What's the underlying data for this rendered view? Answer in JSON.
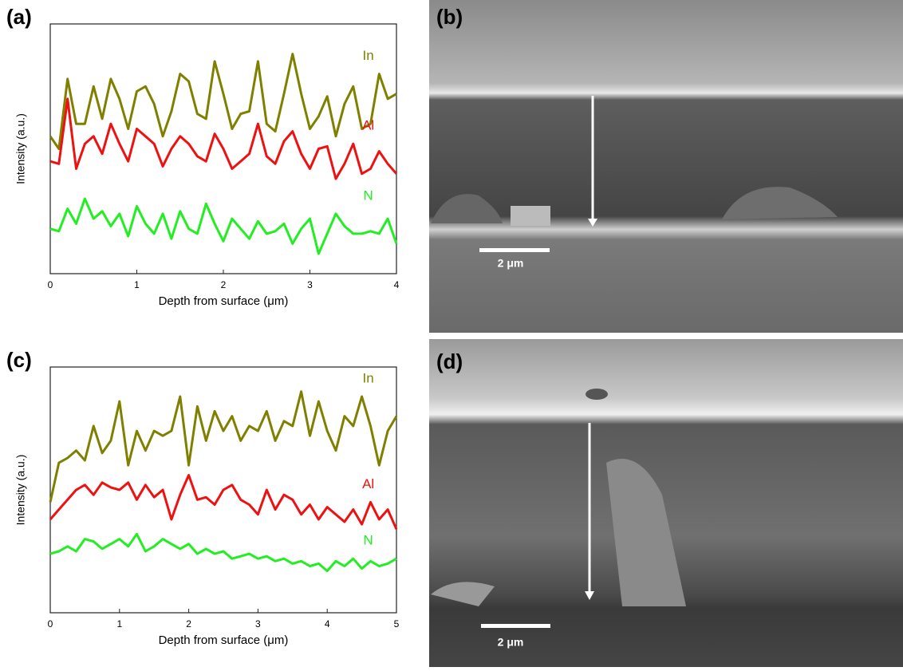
{
  "chart_data": [
    {
      "type": "line",
      "label": "(a)",
      "xlabel": "Depth from surface (μm)",
      "ylabel": "Intensity (a.u.)",
      "xlim": [
        0,
        4
      ],
      "xticks": [
        0,
        1,
        2,
        3,
        4
      ],
      "ylim": [
        0,
        100
      ],
      "x": [
        0,
        0.1,
        0.2,
        0.3,
        0.4,
        0.5,
        0.6,
        0.7,
        0.8,
        0.9,
        1,
        1.1,
        1.2,
        1.3,
        1.4,
        1.5,
        1.6,
        1.7,
        1.8,
        1.9,
        2,
        2.1,
        2.2,
        2.3,
        2.4,
        2.5,
        2.6,
        2.7,
        2.8,
        2.9,
        3,
        3.1,
        3.2,
        3.3,
        3.4,
        3.5,
        3.6,
        3.7,
        3.8,
        3.9,
        4
      ],
      "series": [
        {
          "name": "In",
          "color": "#808000",
          "values": [
            55,
            50,
            78,
            60,
            60,
            75,
            62,
            78,
            70,
            58,
            73,
            75,
            68,
            55,
            65,
            80,
            77,
            64,
            62,
            85,
            72,
            58,
            64,
            65,
            85,
            60,
            57,
            72,
            88,
            72,
            58,
            63,
            71,
            55,
            68,
            75,
            58,
            60,
            80,
            70,
            72
          ]
        },
        {
          "name": "Al",
          "color": "#ee1111",
          "values": [
            45,
            44,
            70,
            42,
            52,
            55,
            48,
            60,
            52,
            45,
            58,
            55,
            52,
            43,
            50,
            55,
            52,
            47,
            45,
            56,
            50,
            42,
            45,
            48,
            60,
            47,
            44,
            53,
            57,
            48,
            42,
            50,
            51,
            38,
            44,
            52,
            40,
            42,
            49,
            44,
            40
          ]
        },
        {
          "name": "N",
          "color": "#22ee22",
          "values": [
            18,
            17,
            26,
            20,
            30,
            22,
            25,
            19,
            24,
            15,
            27,
            20,
            16,
            24,
            14,
            25,
            18,
            16,
            28,
            20,
            13,
            22,
            18,
            14,
            21,
            16,
            17,
            20,
            12,
            18,
            22,
            8,
            16,
            24,
            19,
            16,
            16,
            17,
            16,
            22,
            12
          ]
        }
      ]
    },
    {
      "type": "line",
      "label": "(c)",
      "xlabel": "Depth from surface (μm)",
      "ylabel": "Intensity (a.u.)",
      "xlim": [
        0,
        5
      ],
      "xticks": [
        0,
        1,
        2,
        3,
        4,
        5
      ],
      "ylim": [
        0,
        100
      ],
      "x": [
        0,
        0.125,
        0.25,
        0.375,
        0.5,
        0.625,
        0.75,
        0.875,
        1,
        1.125,
        1.25,
        1.375,
        1.5,
        1.625,
        1.75,
        1.875,
        2,
        2.125,
        2.25,
        2.375,
        2.5,
        2.625,
        2.75,
        2.875,
        3,
        3.125,
        3.25,
        3.375,
        3.5,
        3.625,
        3.75,
        3.875,
        4,
        4.125,
        4.25,
        4.375,
        4.5,
        4.625,
        4.75,
        4.875,
        5
      ],
      "series": [
        {
          "name": "In",
          "color": "#808000",
          "values": [
            45,
            61,
            63,
            66,
            62,
            76,
            65,
            70,
            86,
            60,
            74,
            66,
            74,
            72,
            74,
            88,
            60,
            84,
            70,
            82,
            74,
            80,
            70,
            76,
            74,
            82,
            70,
            78,
            76,
            90,
            72,
            86,
            74,
            66,
            80,
            76,
            88,
            76,
            60,
            74,
            80
          ]
        },
        {
          "name": "Al",
          "color": "#ee1111",
          "values": [
            38,
            42,
            46,
            50,
            52,
            48,
            53,
            51,
            50,
            53,
            46,
            52,
            47,
            50,
            38,
            48,
            56,
            46,
            47,
            44,
            50,
            52,
            46,
            44,
            40,
            50,
            42,
            48,
            46,
            40,
            44,
            38,
            43,
            40,
            37,
            42,
            36,
            45,
            38,
            42,
            34
          ]
        },
        {
          "name": "N",
          "color": "#22ee22",
          "values": [
            24,
            25,
            27,
            25,
            30,
            29,
            26,
            28,
            30,
            27,
            32,
            25,
            27,
            30,
            28,
            26,
            28,
            24,
            26,
            24,
            25,
            22,
            23,
            24,
            22,
            23,
            21,
            22,
            20,
            21,
            19,
            20,
            17,
            21,
            19,
            22,
            18,
            21,
            19,
            20,
            22
          ]
        }
      ]
    }
  ],
  "images": [
    {
      "label": "(b)",
      "scale_bar": "2 μm"
    },
    {
      "label": "(d)",
      "scale_bar": "2 μm"
    }
  ]
}
